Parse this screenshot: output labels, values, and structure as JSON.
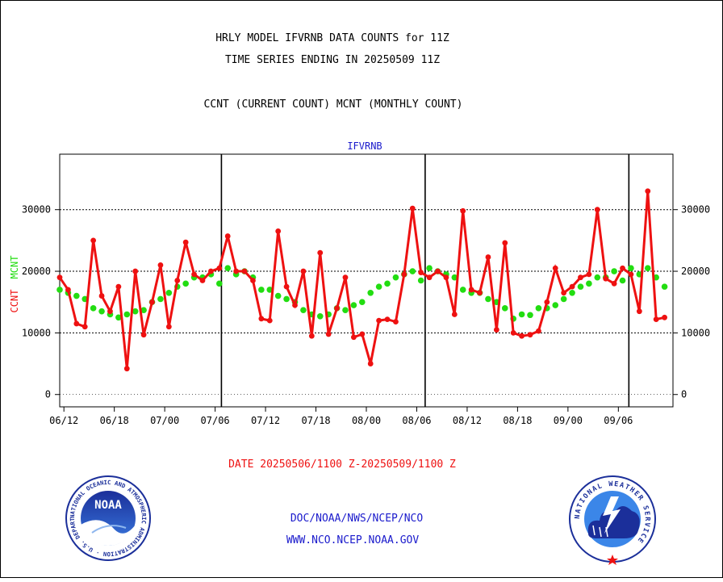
{
  "titles": {
    "line1": "HRLY MODEL IFVRNB DATA COUNTS for 11Z",
    "line2": "TIME SERIES ENDING IN 20250509 11Z",
    "line3": "CCNT (CURRENT COUNT) MCNT (MONTHLY COUNT)"
  },
  "date_range": "DATE 20250506/1100 Z-20250509/1100 Z",
  "footer": {
    "org_line": "DOC/NOAA/NWS/NCEP/NCO",
    "url_line": "WWW.NCO.NCEP.NOAA.GOV"
  },
  "logos": {
    "noaa_text": "NOAA",
    "noaa_ring": "NATIONAL OCEANIC AND ATMOSPHERIC ADMINISTRATION · U.S. DEPARTMENT OF COMMERCE ·",
    "nws_ring": "NATIONAL WEATHER SERVICE"
  },
  "colors": {
    "ccnt": "#ee1111",
    "mcnt": "#22dd11",
    "title_blue": "#1a1acc",
    "date_red": "#ee1111"
  },
  "chart_data": {
    "type": "line",
    "title": "IFVRNB",
    "ylabel_left": [
      "CCNT",
      "MCNT"
    ],
    "yticks": [
      0,
      10000,
      20000,
      30000
    ],
    "ylim": [
      -2000,
      39000
    ],
    "xlim": [
      0,
      73
    ],
    "xticks": [
      {
        "label": "06/12",
        "x": 0.5
      },
      {
        "label": "06/18",
        "x": 6.5
      },
      {
        "label": "07/00",
        "x": 12.5
      },
      {
        "label": "07/06",
        "x": 18.5
      },
      {
        "label": "07/12",
        "x": 24.5
      },
      {
        "label": "07/18",
        "x": 30.5
      },
      {
        "label": "08/00",
        "x": 36.5
      },
      {
        "label": "08/06",
        "x": 42.5
      },
      {
        "label": "08/12",
        "x": 48.5
      },
      {
        "label": "08/18",
        "x": 54.5
      },
      {
        "label": "09/00",
        "x": 60.5
      },
      {
        "label": "09/06",
        "x": 66.5
      }
    ],
    "day_dividers": [
      19.25,
      43.5,
      67.75
    ],
    "grid": true,
    "series": [
      {
        "name": "CCNT",
        "values": [
          19000,
          17000,
          11500,
          11000,
          25000,
          16000,
          13500,
          17500,
          4200,
          20000,
          9700,
          15000,
          21000,
          11000,
          18500,
          24700,
          19500,
          18500,
          20000,
          20500,
          25700,
          20000,
          20000,
          18500,
          12300,
          12000,
          26500,
          17500,
          14500,
          20000,
          9500,
          23000,
          9800,
          14000,
          19000,
          9300,
          9800,
          5000,
          12000,
          12200,
          11800,
          19500,
          30200,
          19800,
          19000,
          20000,
          19000,
          13000,
          29800,
          17000,
          16500,
          22300,
          10500,
          24600,
          10000,
          9500,
          9700,
          10300,
          15000,
          20500,
          16500,
          17500,
          19000,
          19500,
          30000,
          18800,
          18000,
          20500,
          19500,
          13500,
          33000,
          12200,
          12500
        ]
      },
      {
        "name": "MCNT",
        "values": [
          17000,
          16500,
          16000,
          15500,
          14000,
          13500,
          13000,
          12500,
          13000,
          13500,
          13700,
          15000,
          15500,
          16500,
          17500,
          18000,
          19000,
          19000,
          19500,
          18000,
          20500,
          19500,
          20000,
          19000,
          17000,
          17000,
          16000,
          15500,
          15000,
          13700,
          13000,
          12700,
          13000,
          14000,
          13700,
          14500,
          15000,
          16500,
          17500,
          18000,
          19000,
          19500,
          20000,
          18500,
          20500,
          20000,
          19500,
          19000,
          17000,
          16500,
          16500,
          15500,
          15000,
          14000,
          12300,
          13000,
          12900,
          14000,
          14000,
          14500,
          15500,
          16500,
          17500,
          18000,
          19000,
          19000,
          20000,
          18500,
          20500,
          19500,
          20500,
          19000,
          17500
        ]
      }
    ]
  }
}
